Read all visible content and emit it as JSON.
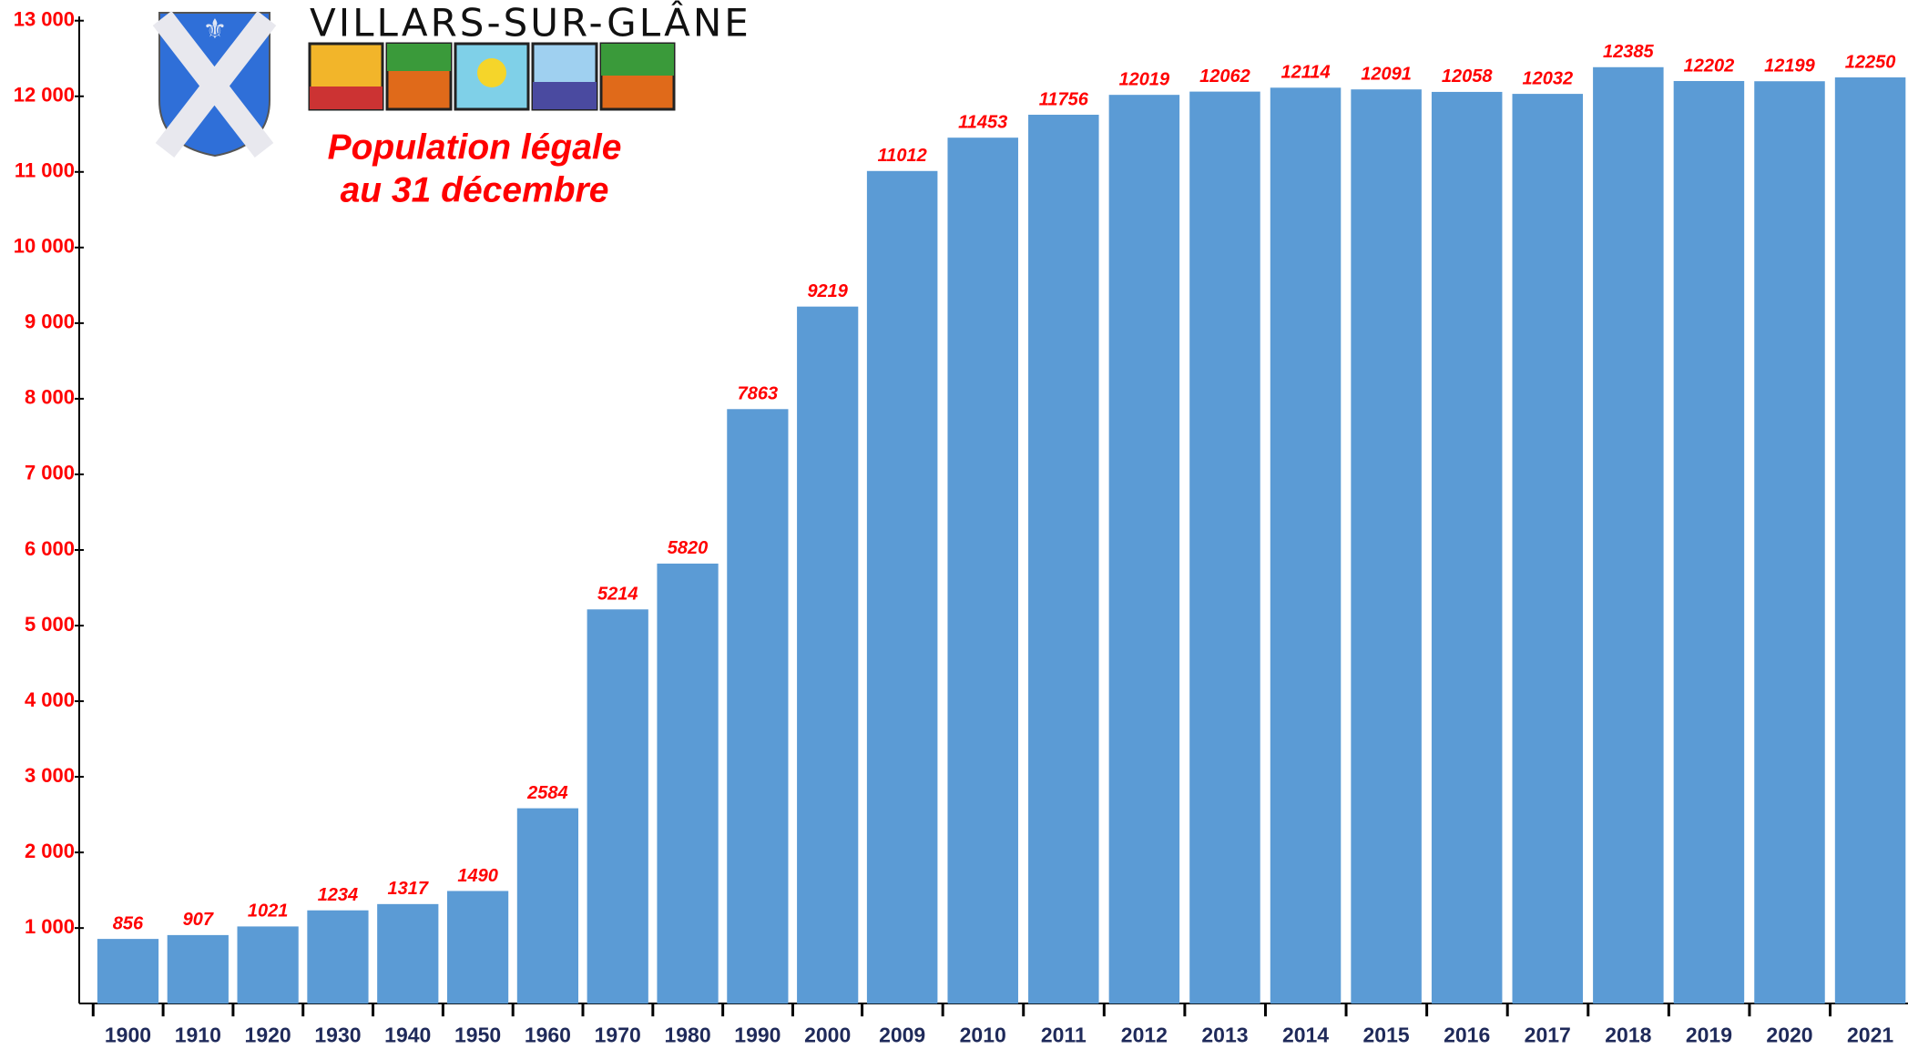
{
  "chart_data": {
    "type": "bar",
    "logo_text": "VILLARS-SUR-GLÂNE",
    "title": [
      "Population légale",
      "au 31 décembre"
    ],
    "categories": [
      "1900",
      "1910",
      "1920",
      "1930",
      "1940",
      "1950",
      "1960",
      "1970",
      "1980",
      "1990",
      "2000",
      "2009",
      "2010",
      "2011",
      "2012",
      "2013",
      "2014",
      "2015",
      "2016",
      "2017",
      "2018",
      "2019",
      "2020",
      "2021"
    ],
    "values": [
      856,
      907,
      1021,
      1234,
      1317,
      1490,
      2584,
      5214,
      5820,
      7863,
      9219,
      11012,
      11453,
      11756,
      12019,
      12062,
      12114,
      12091,
      12058,
      12032,
      12385,
      12202,
      12199,
      12250
    ],
    "color": "#5b9bd5",
    "ylim": [
      0,
      13000
    ],
    "yticks": [
      {
        "value": 1000,
        "label": "1 000"
      },
      {
        "value": 2000,
        "label": "2 000"
      },
      {
        "value": 3000,
        "label": "3 000"
      },
      {
        "value": 4000,
        "label": "4 000"
      },
      {
        "value": 5000,
        "label": "5 000"
      },
      {
        "value": 6000,
        "label": "6 000"
      },
      {
        "value": 7000,
        "label": "7 000"
      },
      {
        "value": 8000,
        "label": "8 000"
      },
      {
        "value": 9000,
        "label": "9 000"
      },
      {
        "value": 10000,
        "label": "10 000"
      },
      {
        "value": 11000,
        "label": "11 000"
      },
      {
        "value": 12000,
        "label": "12 000"
      },
      {
        "value": 13000,
        "label": "13 000"
      }
    ]
  }
}
